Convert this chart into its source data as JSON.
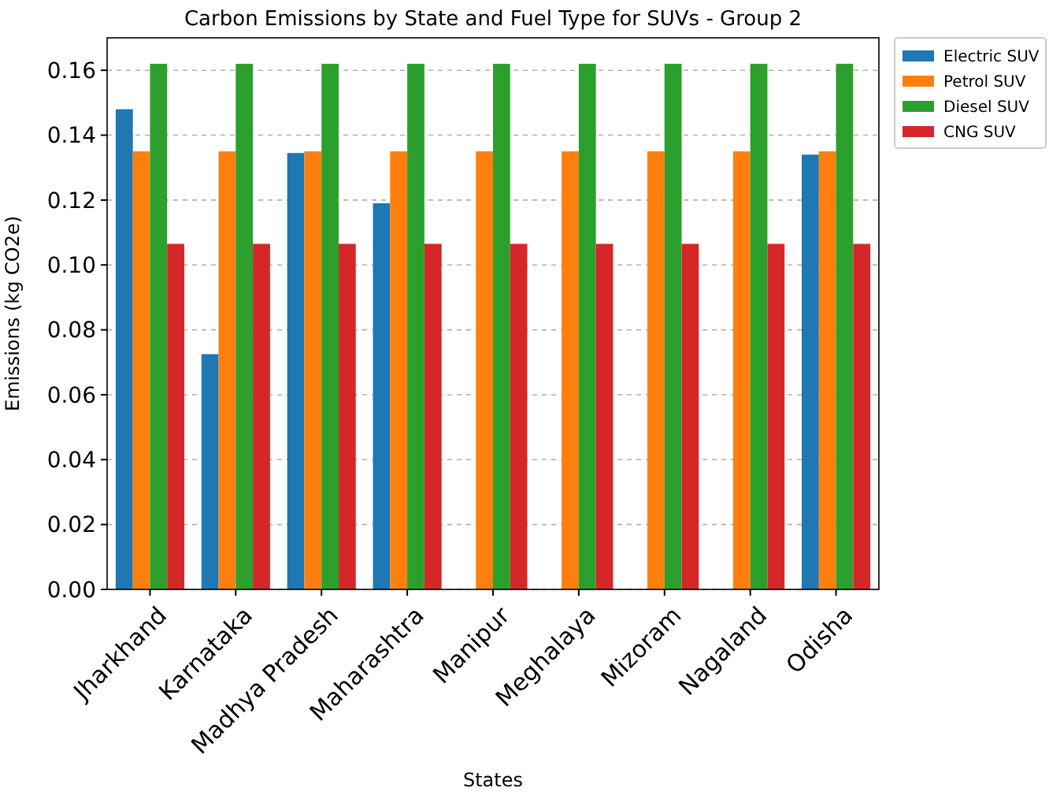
{
  "chart_data": {
    "type": "bar",
    "title": "Carbon Emissions by State and Fuel Type for SUVs - Group 2",
    "xlabel": "States",
    "ylabel": "Emissions (kg CO2e)",
    "categories": [
      "Jharkhand",
      "Karnataka",
      "Madhya Pradesh",
      "Maharashtra",
      "Manipur",
      "Meghalaya",
      "Mizoram",
      "Nagaland",
      "Odisha"
    ],
    "series": [
      {
        "name": "Electric SUV",
        "color": "#1f77b4",
        "values": [
          0.148,
          0.0725,
          0.1345,
          0.119,
          0,
          0,
          0,
          0,
          0.134
        ]
      },
      {
        "name": "Petrol SUV",
        "color": "#ff7f0e",
        "values": [
          0.135,
          0.135,
          0.135,
          0.135,
          0.135,
          0.135,
          0.135,
          0.135,
          0.135
        ]
      },
      {
        "name": "Diesel SUV",
        "color": "#2ca02c",
        "values": [
          0.162,
          0.162,
          0.162,
          0.162,
          0.162,
          0.162,
          0.162,
          0.162,
          0.162
        ]
      },
      {
        "name": "CNG SUV",
        "color": "#d62728",
        "values": [
          0.1065,
          0.1065,
          0.1065,
          0.1065,
          0.1065,
          0.1065,
          0.1065,
          0.1065,
          0.1065
        ]
      }
    ],
    "ylim": [
      0,
      0.17
    ],
    "yticks": [
      {
        "value": 0,
        "label": "0.00"
      },
      {
        "value": 0.02,
        "label": "0.02"
      },
      {
        "value": 0.04,
        "label": "0.04"
      },
      {
        "value": 0.06,
        "label": "0.06"
      },
      {
        "value": 0.08,
        "label": "0.08"
      },
      {
        "value": 0.1,
        "label": "0.10"
      },
      {
        "value": 0.12,
        "label": "0.12"
      },
      {
        "value": 0.14,
        "label": "0.14"
      },
      {
        "value": 0.16,
        "label": "0.16"
      }
    ],
    "grid": "y",
    "legend": "right"
  }
}
